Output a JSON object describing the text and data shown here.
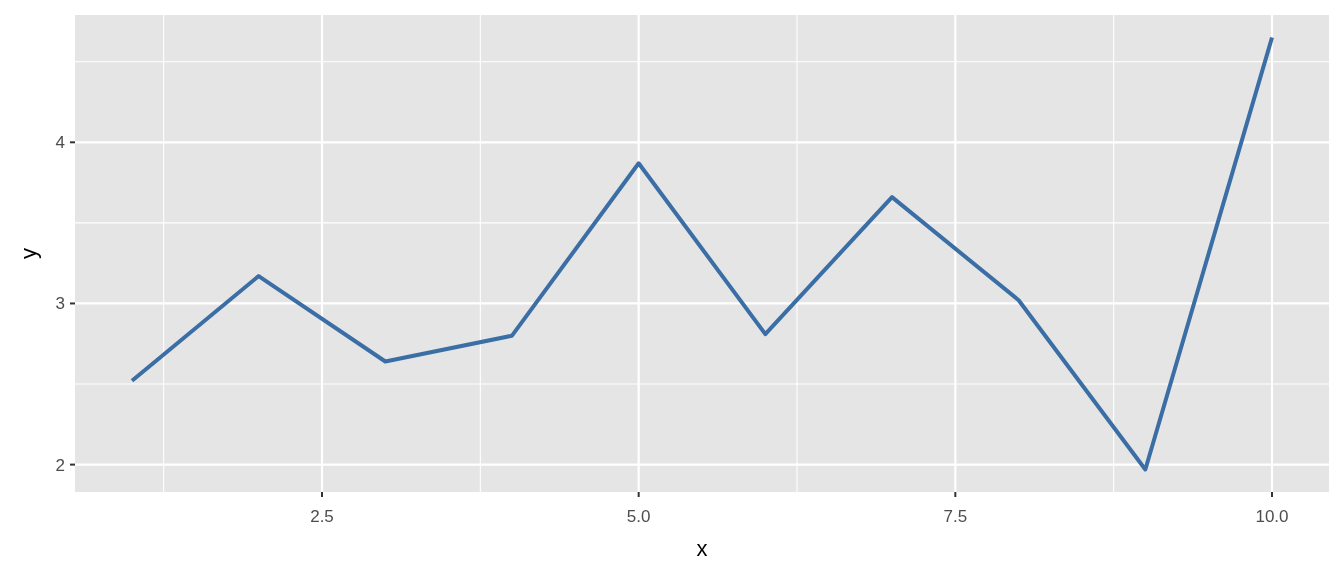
{
  "chart_data": {
    "type": "line",
    "xlabel": "x",
    "ylabel": "y",
    "x": [
      1,
      2,
      3,
      4,
      5,
      6,
      7,
      8,
      9,
      10
    ],
    "series": [
      {
        "color": "#3a6ea5",
        "values": [
          2.52,
          3.17,
          2.64,
          2.8,
          3.87,
          2.81,
          3.66,
          3.02,
          1.97,
          4.65
        ]
      }
    ],
    "xlim": [
      0.55,
      10.45
    ],
    "ylim": [
      1.83,
      4.79
    ],
    "xticks": [
      {
        "value": 1.25,
        "label": null
      },
      2.5,
      {
        "value": 3.75,
        "label": null
      },
      {
        "value": 5,
        "label": "5.0"
      },
      {
        "value": 6.25,
        "label": null
      },
      7.5,
      {
        "value": 8.75,
        "label": null
      },
      {
        "value": 10,
        "label": "10.0"
      }
    ],
    "yticks": [
      2,
      {
        "value": 2.5,
        "label": null
      },
      3,
      {
        "value": 3.5,
        "label": null
      },
      4,
      {
        "value": 4.5,
        "label": null
      }
    ],
    "grid": true
  }
}
